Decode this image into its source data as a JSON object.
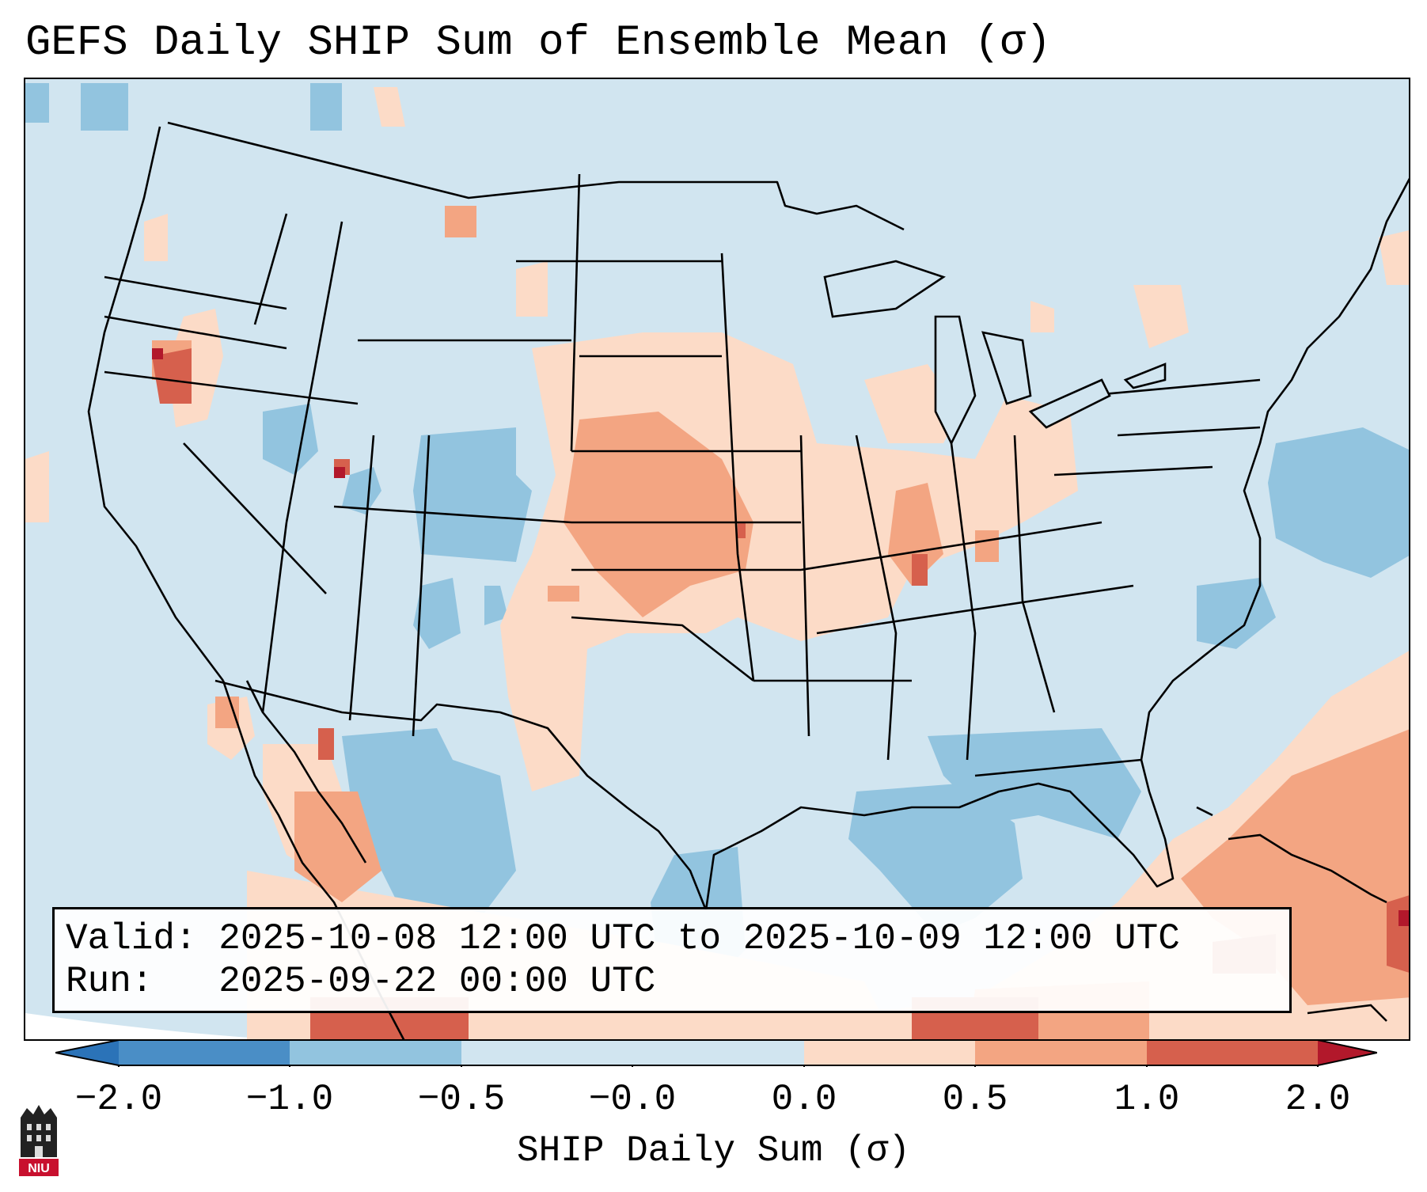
{
  "title": "GEFS Daily SHIP Sum of Ensemble Mean (σ)",
  "info": {
    "valid_line": "Valid: 2025-10-08 12:00 UTC to 2025-10-09 12:00 UTC",
    "run_line": "Run:   2025-09-22 00:00 UTC"
  },
  "colorbar": {
    "label": "SHIP Daily Sum (σ)",
    "ticks": [
      "−2.0",
      "−1.0",
      "−0.5",
      "−0.0",
      "0.0",
      "0.5",
      "1.0",
      "2.0"
    ],
    "colors": {
      "lt_neg2": "#2b73b8",
      "neg2_neg1": "#4a8ec6",
      "neg1_neg05": "#92c4df",
      "neg05_0": "#d1e5f0",
      "zero_05": "#fcdbc7",
      "p05_1": "#f3a582",
      "p1_2": "#d6604d",
      "gt_2": "#b2182b"
    }
  },
  "logo": {
    "text": "NIU"
  }
}
